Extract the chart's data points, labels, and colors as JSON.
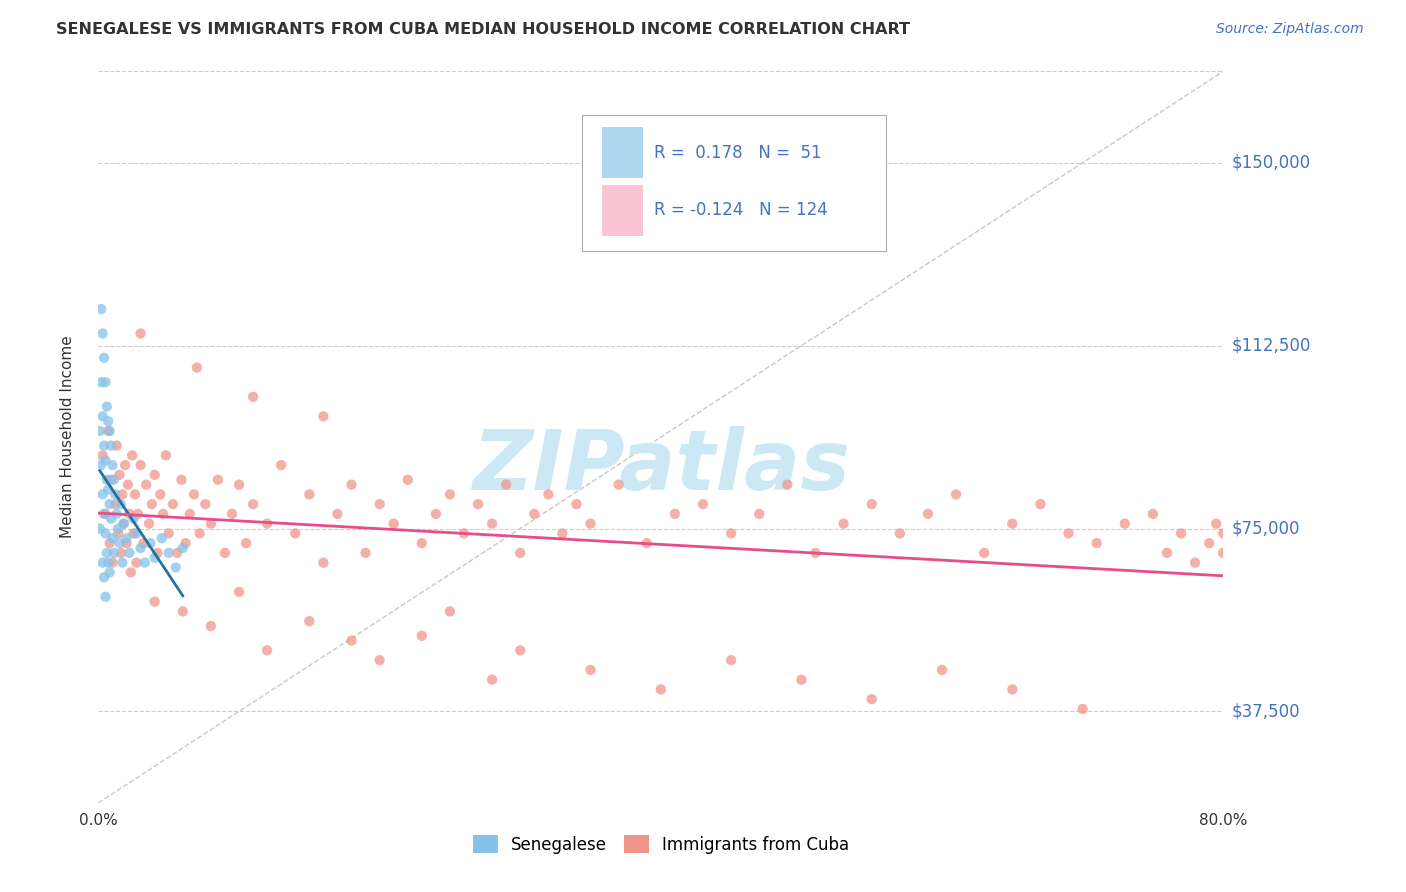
{
  "title": "SENEGALESE VS IMMIGRANTS FROM CUBA MEDIAN HOUSEHOLD INCOME CORRELATION CHART",
  "source_text": "Source: ZipAtlas.com",
  "ylabel": "Median Household Income",
  "xlim": [
    0.0,
    0.8
  ],
  "ylim": [
    18750,
    168750
  ],
  "yticks": [
    37500,
    75000,
    112500,
    150000
  ],
  "ytick_labels": [
    "$37,500",
    "$75,000",
    "$112,500",
    "$150,000"
  ],
  "xticks": [
    0.0,
    0.1,
    0.2,
    0.3,
    0.4,
    0.5,
    0.6,
    0.7,
    0.8
  ],
  "xtick_labels": [
    "0.0%",
    "",
    "",
    "",
    "",
    "",
    "",
    "",
    "80.0%"
  ],
  "senegalese_color": "#85c1e9",
  "cuba_color": "#f1948a",
  "senegalese_R": 0.178,
  "senegalese_N": 51,
  "cuba_R": -0.124,
  "cuba_N": 124,
  "trend_line_color_blue": "#2471a3",
  "trend_line_color_pink": "#e74c8b",
  "diagonal_color": "#c8c8c8",
  "background_color": "#ffffff",
  "watermark_text": "ZIPatlas",
  "watermark_color": "#cde8f5",
  "legend_box_color_blue": "#aed6f1",
  "legend_box_color_pink": "#f9c4d4",
  "title_fontsize": 12,
  "senegalese_x": [
    0.001,
    0.001,
    0.002,
    0.002,
    0.002,
    0.003,
    0.003,
    0.003,
    0.003,
    0.004,
    0.004,
    0.004,
    0.004,
    0.005,
    0.005,
    0.005,
    0.005,
    0.006,
    0.006,
    0.006,
    0.007,
    0.007,
    0.007,
    0.008,
    0.008,
    0.008,
    0.009,
    0.009,
    0.01,
    0.01,
    0.011,
    0.011,
    0.012,
    0.013,
    0.014,
    0.015,
    0.016,
    0.017,
    0.018,
    0.02,
    0.022,
    0.025,
    0.027,
    0.03,
    0.033,
    0.037,
    0.04,
    0.045,
    0.05,
    0.055,
    0.06
  ],
  "senegalese_y": [
    95000,
    75000,
    120000,
    105000,
    88000,
    115000,
    98000,
    82000,
    68000,
    110000,
    92000,
    78000,
    65000,
    105000,
    89000,
    74000,
    61000,
    100000,
    85000,
    70000,
    97000,
    83000,
    68000,
    95000,
    80000,
    66000,
    92000,
    77000,
    88000,
    73000,
    85000,
    70000,
    82000,
    78000,
    75000,
    72000,
    80000,
    68000,
    76000,
    73000,
    70000,
    77000,
    74000,
    71000,
    68000,
    72000,
    69000,
    73000,
    70000,
    67000,
    71000
  ],
  "cuba_x": [
    0.003,
    0.005,
    0.007,
    0.008,
    0.009,
    0.01,
    0.012,
    0.013,
    0.014,
    0.015,
    0.016,
    0.017,
    0.018,
    0.019,
    0.02,
    0.021,
    0.022,
    0.023,
    0.024,
    0.025,
    0.026,
    0.027,
    0.028,
    0.03,
    0.032,
    0.034,
    0.036,
    0.038,
    0.04,
    0.042,
    0.044,
    0.046,
    0.048,
    0.05,
    0.053,
    0.056,
    0.059,
    0.062,
    0.065,
    0.068,
    0.072,
    0.076,
    0.08,
    0.085,
    0.09,
    0.095,
    0.1,
    0.105,
    0.11,
    0.12,
    0.13,
    0.14,
    0.15,
    0.16,
    0.17,
    0.18,
    0.19,
    0.2,
    0.21,
    0.22,
    0.23,
    0.24,
    0.25,
    0.26,
    0.27,
    0.28,
    0.29,
    0.3,
    0.31,
    0.32,
    0.33,
    0.34,
    0.35,
    0.37,
    0.39,
    0.41,
    0.43,
    0.45,
    0.47,
    0.49,
    0.51,
    0.53,
    0.55,
    0.57,
    0.59,
    0.61,
    0.63,
    0.65,
    0.67,
    0.69,
    0.71,
    0.73,
    0.75,
    0.76,
    0.77,
    0.78,
    0.79,
    0.795,
    0.8,
    0.8,
    0.04,
    0.06,
    0.08,
    0.1,
    0.12,
    0.15,
    0.18,
    0.2,
    0.23,
    0.25,
    0.28,
    0.3,
    0.35,
    0.4,
    0.45,
    0.5,
    0.55,
    0.6,
    0.65,
    0.7,
    0.03,
    0.07,
    0.11,
    0.16
  ],
  "cuba_y": [
    90000,
    78000,
    95000,
    72000,
    85000,
    68000,
    80000,
    92000,
    74000,
    86000,
    70000,
    82000,
    76000,
    88000,
    72000,
    84000,
    78000,
    66000,
    90000,
    74000,
    82000,
    68000,
    78000,
    88000,
    72000,
    84000,
    76000,
    80000,
    86000,
    70000,
    82000,
    78000,
    90000,
    74000,
    80000,
    70000,
    85000,
    72000,
    78000,
    82000,
    74000,
    80000,
    76000,
    85000,
    70000,
    78000,
    84000,
    72000,
    80000,
    76000,
    88000,
    74000,
    82000,
    68000,
    78000,
    84000,
    70000,
    80000,
    76000,
    85000,
    72000,
    78000,
    82000,
    74000,
    80000,
    76000,
    84000,
    70000,
    78000,
    82000,
    74000,
    80000,
    76000,
    84000,
    72000,
    78000,
    80000,
    74000,
    78000,
    84000,
    70000,
    76000,
    80000,
    74000,
    78000,
    82000,
    70000,
    76000,
    80000,
    74000,
    72000,
    76000,
    78000,
    70000,
    74000,
    68000,
    72000,
    76000,
    70000,
    74000,
    60000,
    58000,
    55000,
    62000,
    50000,
    56000,
    52000,
    48000,
    53000,
    58000,
    44000,
    50000,
    46000,
    42000,
    48000,
    44000,
    40000,
    46000,
    42000,
    38000,
    115000,
    108000,
    102000,
    98000
  ]
}
